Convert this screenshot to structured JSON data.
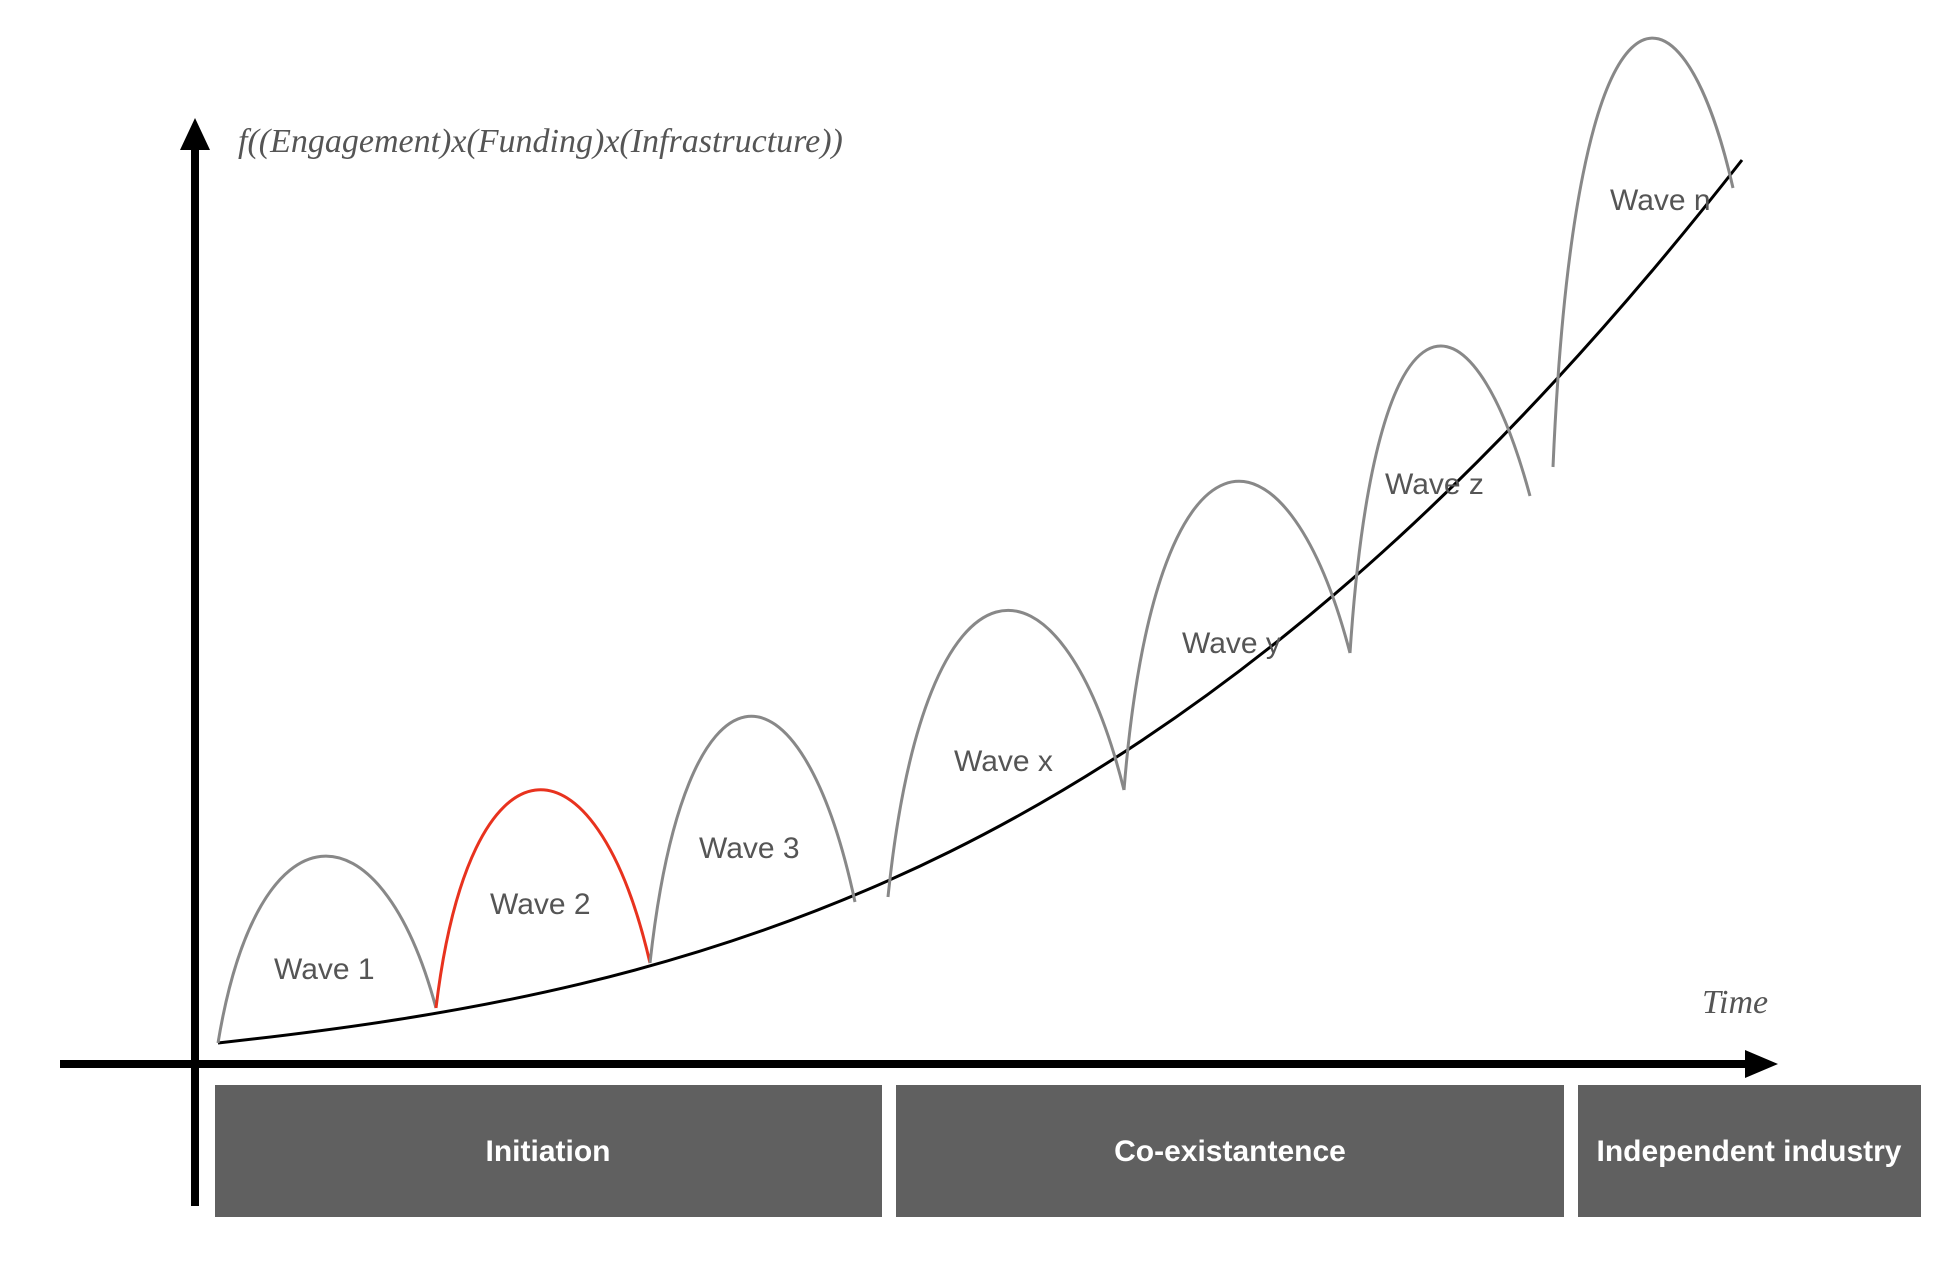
{
  "y_axis": {
    "label": "f((Engagement)x(Funding)x(Infrastructure))"
  },
  "x_axis": {
    "label": "Time"
  },
  "waves": [
    {
      "label": "Wave 1",
      "color": "#888888"
    },
    {
      "label": "Wave 2",
      "color": "#e8321e"
    },
    {
      "label": "Wave 3",
      "color": "#888888"
    },
    {
      "label": "Wave x",
      "color": "#888888"
    },
    {
      "label": "Wave y",
      "color": "#888888"
    },
    {
      "label": "Wave z",
      "color": "#888888"
    },
    {
      "label": "Wave n",
      "color": "#888888"
    }
  ],
  "phases": [
    {
      "label": "Initiation"
    },
    {
      "label": "Co-existantence"
    },
    {
      "label": "Independent industry"
    }
  ],
  "colors": {
    "axis": "#000000",
    "growth_curve": "#000000",
    "wave_default": "#888888",
    "wave_highlight": "#e8321e",
    "phase_box": "#606060",
    "phase_text": "#ffffff"
  }
}
